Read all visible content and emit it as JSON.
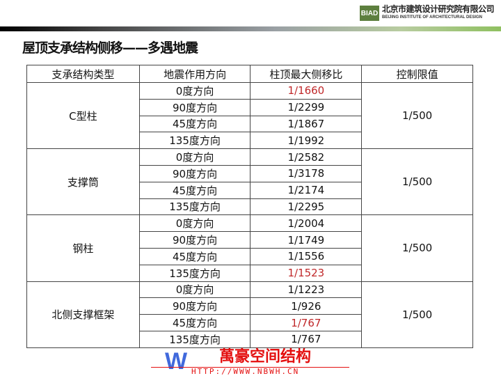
{
  "header": {
    "logo": "BIAD",
    "org_cn": "北京市建筑设计研究院有限公司",
    "org_en": "BEIJING INSTITUTE OF ARCHITECTURAL DESIGN"
  },
  "title": "屋顶支承结构侧移——多遇地震",
  "table": {
    "headers": [
      "支承结构类型",
      "地震作用方向",
      "柱顶最大侧移比",
      "控制限值"
    ],
    "groups": [
      {
        "type": "C型柱",
        "limit": "1/500",
        "rows": [
          {
            "dir": "0度方向",
            "ratio": "1/1660",
            "highlight": true
          },
          {
            "dir": "90度方向",
            "ratio": "1/2299",
            "highlight": false
          },
          {
            "dir": "45度方向",
            "ratio": "1/1867",
            "highlight": false
          },
          {
            "dir": "135度方向",
            "ratio": "1/1992",
            "highlight": false
          }
        ]
      },
      {
        "type": "支撑筒",
        "limit": "1/500",
        "rows": [
          {
            "dir": "0度方向",
            "ratio": "1/2582",
            "highlight": false
          },
          {
            "dir": "90度方向",
            "ratio": "1/3178",
            "highlight": false
          },
          {
            "dir": "45度方向",
            "ratio": "1/2174",
            "highlight": false
          },
          {
            "dir": "135度方向",
            "ratio": "1/2295",
            "highlight": false
          }
        ]
      },
      {
        "type": "钢柱",
        "limit": "1/500",
        "rows": [
          {
            "dir": "0度方向",
            "ratio": "1/2004",
            "highlight": false
          },
          {
            "dir": "90度方向",
            "ratio": "1/1749",
            "highlight": false
          },
          {
            "dir": "45度方向",
            "ratio": "1/1556",
            "highlight": false
          },
          {
            "dir": "135度方向",
            "ratio": "1/1523",
            "highlight": true
          }
        ]
      },
      {
        "type": "北侧支撑框架",
        "limit": "1/500",
        "rows": [
          {
            "dir": "0度方向",
            "ratio": "1/1223",
            "highlight": false
          },
          {
            "dir": "90度方向",
            "ratio": "1/926",
            "highlight": false
          },
          {
            "dir": "45度方向",
            "ratio": "1/767",
            "highlight": true
          },
          {
            "dir": "135度方向",
            "ratio": "1/767",
            "highlight": false
          }
        ]
      }
    ]
  },
  "watermark": {
    "logo": "W",
    "text": "萬豪空间结构",
    "url": "HTTP://WWW.NBWH.CN"
  },
  "colors": {
    "highlight": "#c0282a",
    "brand": "#5d7f3e"
  }
}
